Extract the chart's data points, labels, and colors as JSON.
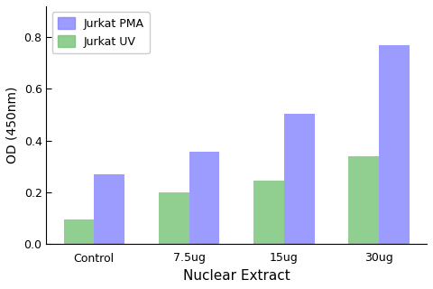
{
  "categories": [
    "Control",
    "7.5ug",
    "15ug",
    "30ug"
  ],
  "series": [
    {
      "label": "Jurkat PMA",
      "values": [
        0.27,
        0.355,
        0.505,
        0.77
      ],
      "color": "#7B7BFF"
    },
    {
      "label": "Jurkat UV",
      "values": [
        0.095,
        0.198,
        0.245,
        0.34
      ],
      "color": "#6DBF6D"
    }
  ],
  "xlabel": "Nuclear Extract",
  "ylabel": "OD (450nm)",
  "ylim": [
    0,
    0.92
  ],
  "yticks": [
    0.0,
    0.2,
    0.4,
    0.6,
    0.8
  ],
  "bar_width": 0.32,
  "legend_loc": "upper left",
  "background_color": "#ffffff"
}
